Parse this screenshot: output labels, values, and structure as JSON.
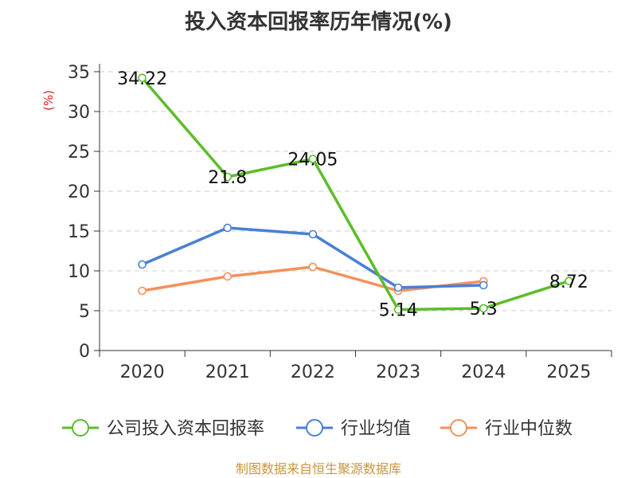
{
  "chart_data": {
    "type": "line",
    "title": "投入资本回报率历年情况(%)",
    "ylabel": "(%)",
    "xlabel": "",
    "categories": [
      "2020",
      "2021",
      "2022",
      "2023",
      "2024",
      "2025"
    ],
    "ylim": [
      0,
      35
    ],
    "yticks": [
      0,
      5,
      10,
      15,
      20,
      25,
      30,
      35
    ],
    "grid": true,
    "legend_position": "bottom",
    "series": [
      {
        "name": "公司投入资本回报率",
        "color": "#5cbd2a",
        "values": [
          34.22,
          21.8,
          24.05,
          5.14,
          5.3,
          8.72
        ],
        "labels": [
          "34.22",
          "21.8",
          "24.05",
          "5.14",
          "5.3",
          "8.72"
        ]
      },
      {
        "name": "行业均值",
        "color": "#4a7fd6",
        "values": [
          10.8,
          15.4,
          14.6,
          7.9,
          8.2,
          null
        ]
      },
      {
        "name": "行业中位数",
        "color": "#f5905a",
        "values": [
          7.5,
          9.3,
          10.5,
          7.5,
          8.7,
          null
        ]
      }
    ],
    "source": "制图数据来自恒生聚源数据库"
  }
}
